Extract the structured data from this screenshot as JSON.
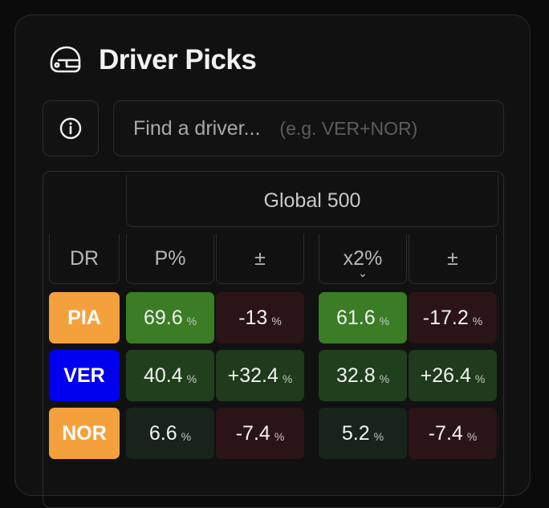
{
  "header": {
    "title": "Driver Picks",
    "icon": "helmet-icon"
  },
  "search": {
    "placeholder": "Find a driver...",
    "hint": "(e.g. VER+NOR)"
  },
  "table": {
    "group_label": "Global 500",
    "columns": [
      "DR",
      "P%",
      "±",
      "x2%",
      "±"
    ],
    "sort_indicator": "chevron-down-icon",
    "percent_unit": "%",
    "rows": [
      {
        "driver": "PIA",
        "badge_color": "#f4a13d",
        "badge_text_color": "#ffffff",
        "p": "69.6",
        "p_delta": "-13",
        "x2": "61.6",
        "x2_delta": "-17.2"
      },
      {
        "driver": "VER",
        "badge_color": "#0000ee",
        "badge_text_color": "#ffffff",
        "p": "40.4",
        "p_delta": "+32.4",
        "x2": "32.8",
        "x2_delta": "+26.4"
      },
      {
        "driver": "NOR",
        "badge_color": "#f4a13d",
        "badge_text_color": "#ffffff",
        "p": "6.6",
        "p_delta": "-7.4",
        "x2": "5.2",
        "x2_delta": "-7.4"
      }
    ]
  },
  "colors": {
    "strong_green": "#3a7d25",
    "mid_green": "#20401d",
    "dark_green": "#1f3a1c",
    "faint_green": "#182419",
    "dark_red": "#2b1416",
    "card_bg": "#111111",
    "border": "#2c2c2c"
  }
}
